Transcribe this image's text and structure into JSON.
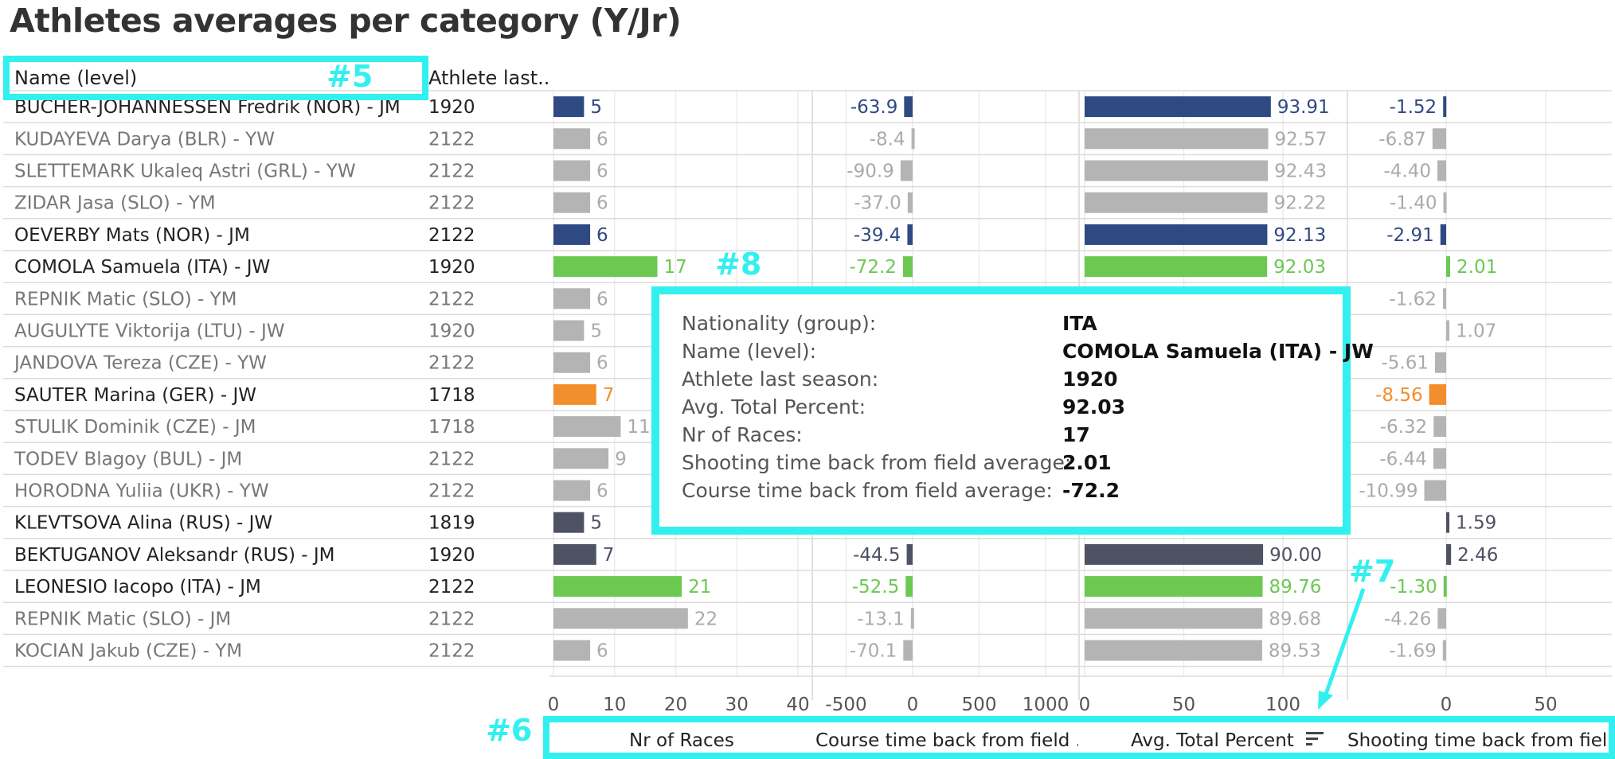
{
  "title": "Athletes averages per category (Y/Jr)",
  "headers": {
    "name": "Name (level)",
    "season": "Athlete last.."
  },
  "colors": {
    "highlight_blue": "#2f4a82",
    "gray": "#b4b4b4",
    "green": "#6cc851",
    "orange": "#f28e2b",
    "dark": "#4e5263",
    "annotation": "#33f0f0"
  },
  "annotations": {
    "a5": "#5",
    "a6": "#6",
    "a7": "#7",
    "a8": "#8"
  },
  "chart_data": {
    "type": "bar",
    "rows": [
      {
        "name": "BUCHER-JOHANNESSEN Fredrik (NOR) - JM",
        "season": "1920",
        "races": 5,
        "races_label": "5",
        "course": -63.9,
        "course_label": "-63.9",
        "avg": 93.91,
        "avg_label": "93.91",
        "shoot": -1.52,
        "shoot_label": "-1.52",
        "color": "highlight_blue"
      },
      {
        "name": "KUDAYEVA Darya (BLR) - YW",
        "season": "2122",
        "races": 6,
        "races_label": "6",
        "course": -8.4,
        "course_label": "-8.4",
        "avg": 92.57,
        "avg_label": "92.57",
        "shoot": -6.87,
        "shoot_label": "-6.87",
        "color": "gray"
      },
      {
        "name": "SLETTEMARK Ukaleq Astri (GRL) - YW",
        "season": "2122",
        "races": 6,
        "races_label": "6",
        "course": -90.9,
        "course_label": "-90.9",
        "avg": 92.43,
        "avg_label": "92.43",
        "shoot": -4.4,
        "shoot_label": "-4.40",
        "color": "gray"
      },
      {
        "name": "ZIDAR Jasa (SLO) - YM",
        "season": "2122",
        "races": 6,
        "races_label": "6",
        "course": -37.0,
        "course_label": "-37.0",
        "avg": 92.22,
        "avg_label": "92.22",
        "shoot": -1.4,
        "shoot_label": "-1.40",
        "color": "gray"
      },
      {
        "name": "OEVERBY Mats (NOR) - JM",
        "season": "2122",
        "races": 6,
        "races_label": "6",
        "course": -39.4,
        "course_label": "-39.4",
        "avg": 92.13,
        "avg_label": "92.13",
        "shoot": -2.91,
        "shoot_label": "-2.91",
        "color": "highlight_blue"
      },
      {
        "name": "COMOLA Samuela (ITA) - JW",
        "season": "1920",
        "races": 17,
        "races_label": "17",
        "course": -72.2,
        "course_label": "-72.2",
        "avg": 92.03,
        "avg_label": "92.03",
        "shoot": 2.01,
        "shoot_label": "2.01",
        "color": "green"
      },
      {
        "name": "REPNIK Matic (SLO) - YM",
        "season": "2122",
        "races": 6,
        "races_label": "6",
        "shoot": -1.62,
        "shoot_label": "-1.62",
        "color": "gray"
      },
      {
        "name": "AUGULYTE Viktorija (LTU) - JW",
        "season": "1920",
        "races": 5,
        "races_label": "5",
        "shoot": 1.07,
        "shoot_label": "1.07",
        "color": "gray"
      },
      {
        "name": "JANDOVA Tereza (CZE) - YW",
        "season": "2122",
        "races": 6,
        "races_label": "6",
        "shoot": -5.61,
        "shoot_label": "-5.61",
        "color": "gray"
      },
      {
        "name": "SAUTER Marina (GER) - JW",
        "season": "1718",
        "races": 7,
        "races_label": "7",
        "shoot": -8.56,
        "shoot_label": "-8.56",
        "color": "orange"
      },
      {
        "name": "STULIK Dominik (CZE) - JM",
        "season": "1718",
        "races": 11,
        "races_label": "11",
        "shoot": -6.32,
        "shoot_label": "-6.32",
        "color": "gray"
      },
      {
        "name": "TODEV Blagoy (BUL) - JM",
        "season": "2122",
        "races": 9,
        "races_label": "9",
        "shoot": -6.44,
        "shoot_label": "-6.44",
        "color": "gray"
      },
      {
        "name": "HORODNA Yuliia (UKR) - YW",
        "season": "2122",
        "races": 6,
        "races_label": "6",
        "shoot": -10.99,
        "shoot_label": "-10.99",
        "color": "gray"
      },
      {
        "name": "KLEVTSOVA Alina (RUS) - JW",
        "season": "1819",
        "races": 5,
        "races_label": "5",
        "shoot": 1.59,
        "shoot_label": "1.59",
        "color": "dark"
      },
      {
        "name": "BEKTUGANOV Aleksandr (RUS) - JM",
        "season": "1920",
        "races": 7,
        "races_label": "7",
        "course": -44.5,
        "course_label": "-44.5",
        "avg": 90.0,
        "avg_label": "90.00",
        "shoot": 2.46,
        "shoot_label": "2.46",
        "color": "dark"
      },
      {
        "name": "LEONESIO Iacopo (ITA) - JM",
        "season": "2122",
        "races": 21,
        "races_label": "21",
        "course": -52.5,
        "course_label": "-52.5",
        "avg": 89.76,
        "avg_label": "89.76",
        "shoot": -1.3,
        "shoot_label": "-1.30",
        "color": "green"
      },
      {
        "name": "REPNIK Matic (SLO) - JM",
        "season": "2122",
        "races": 22,
        "races_label": "22",
        "course": -13.1,
        "course_label": "-13.1",
        "avg": 89.68,
        "avg_label": "89.68",
        "shoot": -4.26,
        "shoot_label": "-4.26",
        "color": "gray"
      },
      {
        "name": "KOCIAN Jakub (CZE) - YM",
        "season": "2122",
        "races": 6,
        "races_label": "6",
        "course": -70.1,
        "course_label": "-70.1",
        "avg": 89.53,
        "avg_label": "89.53",
        "shoot": -1.69,
        "shoot_label": "-1.69",
        "color": "gray"
      }
    ],
    "panels": [
      {
        "key": "races",
        "label": "Nr of Races",
        "min": 0,
        "max": 40,
        "ticks": [
          "0",
          "10",
          "20",
          "30",
          "40"
        ],
        "tick_values": [
          0,
          10,
          20,
          30,
          40
        ]
      },
      {
        "key": "course",
        "label": "Course time back from field ..",
        "min": -500,
        "max": 1000,
        "ticks": [
          "-500",
          "0",
          "500",
          "1000"
        ],
        "tick_values": [
          -500,
          0,
          500,
          1000
        ]
      },
      {
        "key": "avg",
        "label": "Avg. Total Percent",
        "min": 0,
        "max": 100,
        "ticks": [
          "0",
          "50",
          "100"
        ],
        "tick_values": [
          0,
          50,
          100
        ]
      },
      {
        "key": "shoot",
        "label": "Shooting time back from fiel..",
        "min": -50,
        "max": 50,
        "ticks": [
          "0",
          "50"
        ],
        "tick_values": [
          0,
          50
        ]
      }
    ],
    "grid": true
  },
  "tooltip": {
    "rows": [
      {
        "label": "Nationality (group):",
        "value": "ITA"
      },
      {
        "label": "Name (level):",
        "value": "COMOLA Samuela (ITA) - JW"
      },
      {
        "label": "Athlete last season:",
        "value": "1920"
      },
      {
        "label": "Avg. Total Percent:",
        "value": "92.03"
      },
      {
        "label": "Nr of Races:",
        "value": "17"
      },
      {
        "label": "Shooting time back from field average:",
        "value": "2.01"
      },
      {
        "label": "Course time back from field average:",
        "value": "-72.2"
      }
    ]
  }
}
